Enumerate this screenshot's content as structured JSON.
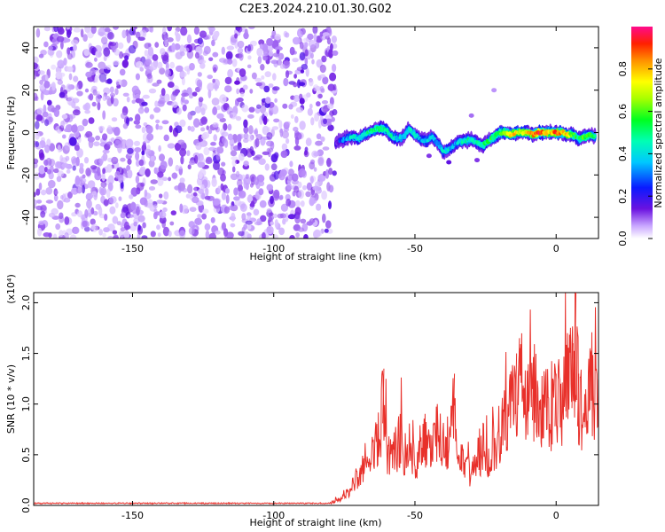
{
  "figure": {
    "title": "C2E3.2024.210.01.30.G02"
  },
  "chart_data": [
    {
      "type": "heatmap",
      "xlabel": "Height of straight line (km)",
      "ylabel": "Frequency (Hz)",
      "xlim": [
        -185,
        15
      ],
      "ylim": [
        -50,
        50
      ],
      "x_ticks": [
        -150,
        -100,
        -50,
        0
      ],
      "x_tick_labels": [
        "-150",
        "-100",
        "-50",
        "0"
      ],
      "y_ticks": [
        -40,
        -20,
        0,
        20,
        40
      ],
      "y_tick_labels": [
        "-40",
        "-20",
        "0",
        "20",
        "40"
      ],
      "colorbar": {
        "label": "Normalized spectral amplitude",
        "range": [
          0,
          1
        ],
        "ticks": [
          0.0,
          0.2,
          0.4,
          0.6,
          0.8
        ],
        "tick_labels": [
          "0.0",
          "0.2",
          "0.4",
          "0.6",
          "0.8"
        ]
      },
      "noise_region_x": [
        -185,
        -78
      ],
      "signal_track": {
        "x": [
          -78,
          -75,
          -72,
          -70,
          -68,
          -65,
          -62,
          -60,
          -58,
          -56,
          -54,
          -52,
          -50,
          -48,
          -46,
          -44,
          -42,
          -40,
          -38,
          -36,
          -34,
          -32,
          -30,
          -28,
          -26,
          -24,
          -22,
          -20,
          -18,
          -16,
          -14,
          -12,
          -10,
          -8,
          -6,
          -4,
          -2,
          0,
          2,
          4,
          6,
          8,
          10,
          12,
          14
        ],
        "freq": [
          -5,
          -3,
          -2,
          -3,
          -1,
          1,
          2,
          1,
          -2,
          -3,
          -2,
          2,
          -1,
          -3,
          -4,
          -2,
          -5,
          -9,
          -8,
          -6,
          -4,
          -4,
          -3,
          -5,
          -6,
          -4,
          -2,
          0,
          0,
          -1,
          0,
          0,
          0,
          -1,
          0,
          0,
          0,
          0,
          0,
          -1,
          -1,
          -3,
          -2,
          -1,
          -2
        ],
        "amplitude": [
          0.15,
          0.3,
          0.4,
          0.45,
          0.45,
          0.5,
          0.5,
          0.45,
          0.45,
          0.4,
          0.4,
          0.45,
          0.4,
          0.35,
          0.35,
          0.35,
          0.35,
          0.4,
          0.4,
          0.35,
          0.4,
          0.45,
          0.45,
          0.45,
          0.5,
          0.5,
          0.55,
          0.6,
          0.7,
          0.8,
          0.75,
          0.7,
          0.8,
          0.85,
          0.95,
          0.8,
          0.75,
          0.9,
          0.8,
          0.75,
          0.55,
          0.5,
          0.6,
          0.55,
          0.5
        ]
      }
    },
    {
      "type": "line",
      "xlabel": "Height of straight line (km)",
      "ylabel": "SNR (10 * v/v)",
      "y_scale_label": "(x10⁴)",
      "xlim": [
        -185,
        15
      ],
      "ylim": [
        0,
        2.1
      ],
      "x_ticks": [
        -150,
        -100,
        -50,
        0
      ],
      "x_tick_labels": [
        "-150",
        "-100",
        "-50",
        "0"
      ],
      "y_ticks": [
        0.0,
        0.5,
        1.0,
        1.5,
        2.0
      ],
      "y_tick_labels": [
        "0.0",
        "0.5",
        "1.0",
        "1.5",
        "2.0"
      ],
      "series": [
        {
          "color": "#e8302a",
          "x": [
            -185,
            -100,
            -80,
            -75,
            -72,
            -70,
            -68,
            -66,
            -64,
            -62,
            -61,
            -60,
            -58,
            -56,
            -55,
            -54,
            -52,
            -50,
            -48,
            -46,
            -45,
            -44,
            -42,
            -40,
            -38,
            -36,
            -35,
            -34,
            -32,
            -30,
            -28,
            -26,
            -24,
            -22,
            -20,
            -18,
            -16,
            -14,
            -13,
            -12,
            -10,
            -8,
            -6,
            -4,
            -2,
            0,
            2,
            4,
            6,
            7,
            8,
            10,
            12,
            14
          ],
          "y": [
            0.02,
            0.02,
            0.03,
            0.1,
            0.25,
            0.35,
            0.45,
            0.55,
            0.7,
            1.0,
            1.35,
            0.65,
            0.6,
            0.7,
            0.9,
            0.6,
            0.75,
            0.55,
            0.7,
            0.8,
            0.6,
            0.75,
            0.85,
            0.7,
            0.8,
            1.3,
            0.5,
            0.55,
            0.45,
            0.4,
            0.55,
            0.7,
            0.6,
            0.75,
            0.85,
            1.0,
            1.2,
            1.5,
            1.65,
            1.1,
            1.2,
            1.4,
            1.05,
            1.2,
            1.1,
            1.3,
            1.25,
            1.45,
            1.6,
            2.1,
            1.3,
            0.9,
            1.55,
            1.25
          ]
        }
      ]
    }
  ]
}
